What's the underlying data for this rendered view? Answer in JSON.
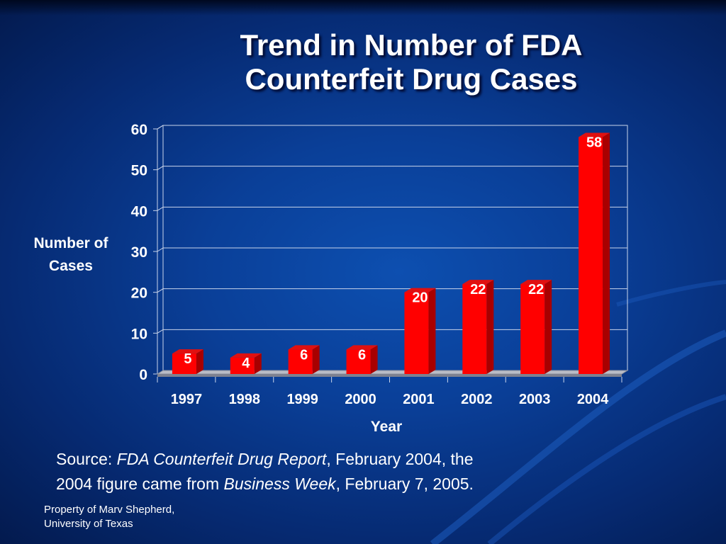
{
  "slide": {
    "title_line1": "Trend in Number of FDA",
    "title_line2": "Counterfeit Drug Cases",
    "source_prefix": "Source: ",
    "source_report": "FDA Counterfeit Drug Report",
    "source_mid": ", February 2004, the",
    "source_line2_start": "2004 figure came from ",
    "source_magazine": "Business Week",
    "source_end": ", February 7, 2005.",
    "credit_line1": "Property of Marv Shepherd,",
    "credit_line2": "University of Texas"
  },
  "colors": {
    "background": "#0a3f98",
    "bar_front": "#ff0000",
    "bar_side": "#a80000",
    "text": "#ffffff"
  },
  "chart_data": {
    "type": "bar",
    "xlabel": "Year",
    "ylabel_line1": "Number of",
    "ylabel_line2": "Cases",
    "categories": [
      "1997",
      "1998",
      "1999",
      "2000",
      "2001",
      "2002",
      "2003",
      "2004"
    ],
    "values": [
      5,
      4,
      6,
      6,
      20,
      22,
      22,
      58
    ],
    "ylim": [
      0,
      60
    ],
    "yticks": [
      0,
      10,
      20,
      30,
      40,
      50,
      60
    ],
    "grid": true,
    "legend": "none",
    "style": "3d"
  }
}
